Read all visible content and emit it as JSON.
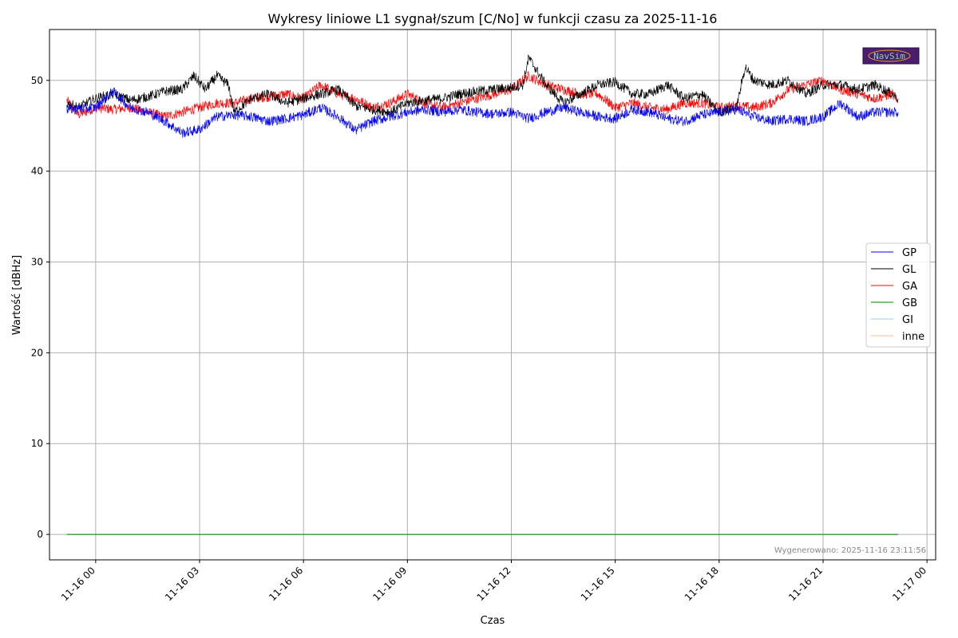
{
  "chart_data": {
    "type": "line",
    "title": "Wykresy liniowe L1 sygnał/szum [C/No] w funkcji czasu za 2025-11-16",
    "xlabel": "Czas",
    "ylabel": "Wartość [dBHz]",
    "x_range": [
      "2025-11-15 22:40",
      "2025-11-17 00:15"
    ],
    "ylim": [
      -2.8,
      55.6
    ],
    "yticks": [
      0,
      10,
      20,
      30,
      40,
      50
    ],
    "ytick_labels": [
      "0",
      "10",
      "20",
      "30",
      "40",
      "50"
    ],
    "xticks": [
      "2025-11-16 00:00",
      "2025-11-16 03:00",
      "2025-11-16 06:00",
      "2025-11-16 09:00",
      "2025-11-16 12:00",
      "2025-11-16 15:00",
      "2025-11-16 18:00",
      "2025-11-16 21:00",
      "2025-11-17 00:00"
    ],
    "xtick_labels": [
      "11-16 00",
      "11-16 03",
      "11-16 06",
      "11-16 09",
      "11-16 12",
      "11-16 15",
      "11-16 18",
      "11-16 21",
      "11-17 00"
    ],
    "grid": true,
    "legend_position": "center-right",
    "series": [
      {
        "name": "GP",
        "color": "#0000ff",
        "x": [
          "2025-11-15 23:10",
          "2025-11-16 00:00",
          "2025-11-16 00:30",
          "2025-11-16 01:00",
          "2025-11-16 01:30",
          "2025-11-16 02:00",
          "2025-11-16 02:30",
          "2025-11-16 03:00",
          "2025-11-16 03:30",
          "2025-11-16 04:00",
          "2025-11-16 04:30",
          "2025-11-16 05:00",
          "2025-11-16 05:30",
          "2025-11-16 06:00",
          "2025-11-16 06:30",
          "2025-11-16 07:00",
          "2025-11-16 07:30",
          "2025-11-16 08:00",
          "2025-11-16 08:30",
          "2025-11-16 09:00",
          "2025-11-16 09:30",
          "2025-11-16 10:00",
          "2025-11-16 10:30",
          "2025-11-16 11:00",
          "2025-11-16 11:30",
          "2025-11-16 12:00",
          "2025-11-16 12:30",
          "2025-11-16 13:00",
          "2025-11-16 13:30",
          "2025-11-16 14:00",
          "2025-11-16 14:30",
          "2025-11-16 15:00",
          "2025-11-16 15:30",
          "2025-11-16 16:00",
          "2025-11-16 16:30",
          "2025-11-16 17:00",
          "2025-11-16 17:30",
          "2025-11-16 18:00",
          "2025-11-16 18:30",
          "2025-11-16 19:00",
          "2025-11-16 19:30",
          "2025-11-16 20:00",
          "2025-11-16 20:30",
          "2025-11-16 21:00",
          "2025-11-16 21:30",
          "2025-11-16 22:00",
          "2025-11-16 22:30",
          "2025-11-16 23:00",
          "2025-11-16 23:10"
        ],
        "y": [
          46.8,
          47.0,
          48.8,
          47.0,
          46.5,
          45.5,
          44.2,
          44.6,
          46.0,
          46.2,
          46.0,
          45.5,
          45.8,
          46.2,
          47.0,
          46.0,
          44.5,
          45.5,
          46.0,
          46.5,
          46.8,
          46.5,
          46.8,
          46.5,
          46.3,
          46.5,
          45.8,
          46.5,
          47.0,
          46.5,
          46.0,
          45.8,
          46.8,
          46.5,
          45.8,
          45.5,
          46.2,
          46.5,
          46.8,
          46.0,
          45.5,
          45.8,
          45.5,
          46.0,
          47.5,
          46.0,
          46.5,
          46.5,
          46.5
        ]
      },
      {
        "name": "GL",
        "color": "#000000",
        "x": [
          "2025-11-15 23:10",
          "2025-11-15 23:30",
          "2025-11-16 00:00",
          "2025-11-16 00:30",
          "2025-11-16 01:00",
          "2025-11-16 01:30",
          "2025-11-16 02:00",
          "2025-11-16 02:30",
          "2025-11-16 02:50",
          "2025-11-16 03:10",
          "2025-11-16 03:30",
          "2025-11-16 03:50",
          "2025-11-16 04:00",
          "2025-11-16 04:30",
          "2025-11-16 05:00",
          "2025-11-16 05:30",
          "2025-11-16 06:00",
          "2025-11-16 06:30",
          "2025-11-16 07:00",
          "2025-11-16 07:30",
          "2025-11-16 08:00",
          "2025-11-16 08:30",
          "2025-11-16 09:00",
          "2025-11-16 09:30",
          "2025-11-16 10:00",
          "2025-11-16 10:30",
          "2025-11-16 11:00",
          "2025-11-16 11:30",
          "2025-11-16 12:00",
          "2025-11-16 12:20",
          "2025-11-16 12:30",
          "2025-11-16 13:00",
          "2025-11-16 13:30",
          "2025-11-16 14:00",
          "2025-11-16 14:30",
          "2025-11-16 15:00",
          "2025-11-16 15:30",
          "2025-11-16 16:00",
          "2025-11-16 16:30",
          "2025-11-16 17:00",
          "2025-11-16 17:30",
          "2025-11-16 18:00",
          "2025-11-16 18:30",
          "2025-11-16 18:45",
          "2025-11-16 19:00",
          "2025-11-16 19:30",
          "2025-11-16 20:00",
          "2025-11-16 20:30",
          "2025-11-16 21:00",
          "2025-11-16 21:30",
          "2025-11-16 22:00",
          "2025-11-16 22:30",
          "2025-11-16 23:00",
          "2025-11-16 23:10"
        ],
        "y": [
          47.5,
          47.0,
          48.0,
          48.5,
          47.8,
          48.2,
          48.8,
          49.0,
          50.5,
          49.0,
          50.5,
          49.5,
          46.5,
          48.0,
          48.5,
          47.5,
          48.0,
          48.5,
          49.0,
          47.2,
          46.8,
          46.5,
          47.5,
          47.8,
          48.0,
          48.5,
          48.8,
          49.0,
          49.2,
          49.5,
          52.5,
          49.5,
          47.5,
          48.5,
          49.5,
          49.8,
          48.5,
          48.5,
          49.5,
          48.0,
          48.5,
          46.5,
          47.0,
          51.5,
          50.0,
          49.5,
          50.0,
          48.5,
          49.5,
          49.5,
          49.0,
          49.5,
          48.5,
          48.0
        ]
      },
      {
        "name": "GA",
        "color": "#ff0000",
        "x": [
          "2025-11-15 23:10",
          "2025-11-15 23:30",
          "2025-11-16 00:00",
          "2025-11-16 00:30",
          "2025-11-16 01:00",
          "2025-11-16 01:30",
          "2025-11-16 02:00",
          "2025-11-16 02:30",
          "2025-11-16 03:00",
          "2025-11-16 03:30",
          "2025-11-16 04:00",
          "2025-11-16 04:30",
          "2025-11-16 05:00",
          "2025-11-16 05:30",
          "2025-11-16 06:00",
          "2025-11-16 06:30",
          "2025-11-16 07:00",
          "2025-11-16 07:30",
          "2025-11-16 08:00",
          "2025-11-16 08:30",
          "2025-11-16 09:00",
          "2025-11-16 09:30",
          "2025-11-16 10:00",
          "2025-11-16 10:30",
          "2025-11-16 11:00",
          "2025-11-16 11:30",
          "2025-11-16 12:00",
          "2025-11-16 12:30",
          "2025-11-16 13:00",
          "2025-11-16 13:30",
          "2025-11-16 14:00",
          "2025-11-16 14:30",
          "2025-11-16 15:00",
          "2025-11-16 15:30",
          "2025-11-16 16:00",
          "2025-11-16 16:30",
          "2025-11-16 17:00",
          "2025-11-16 17:30",
          "2025-11-16 18:00",
          "2025-11-16 18:30",
          "2025-11-16 19:00",
          "2025-11-16 19:30",
          "2025-11-16 20:00",
          "2025-11-16 20:30",
          "2025-11-16 21:00",
          "2025-11-16 21:30",
          "2025-11-16 22:00",
          "2025-11-16 22:30",
          "2025-11-16 23:00",
          "2025-11-16 23:10"
        ],
        "y": [
          47.8,
          46.2,
          47.0,
          46.8,
          47.0,
          46.5,
          46.0,
          46.5,
          47.0,
          47.5,
          47.5,
          48.0,
          48.2,
          48.5,
          48.0,
          49.5,
          48.5,
          48.0,
          47.0,
          47.5,
          48.5,
          47.5,
          47.0,
          47.5,
          48.0,
          48.5,
          49.0,
          50.5,
          49.5,
          49.0,
          48.5,
          48.5,
          47.0,
          47.5,
          47.0,
          46.8,
          47.5,
          47.5,
          47.0,
          47.2,
          47.0,
          47.5,
          49.0,
          49.5,
          50.0,
          49.0,
          48.5,
          48.0,
          48.5,
          47.5
        ]
      },
      {
        "name": "GB",
        "color": "#008000",
        "x": [
          "2025-11-15 23:10",
          "2025-11-16 23:10"
        ],
        "y": [
          0,
          0
        ]
      },
      {
        "name": "GI",
        "color": "#9ec9f0",
        "x": [
          "2025-11-15 23:10",
          "2025-11-16 23:10"
        ],
        "y": [
          0,
          0
        ]
      },
      {
        "name": "inne",
        "color": "#f5c08a",
        "x": [
          "2025-11-15 23:10",
          "2025-11-16 23:10"
        ],
        "y": [
          0,
          0
        ]
      }
    ]
  },
  "footer": {
    "generated": "Wygenerowano: 2025-11-16 23:11:56"
  },
  "logo": {
    "text": "NavSim"
  }
}
